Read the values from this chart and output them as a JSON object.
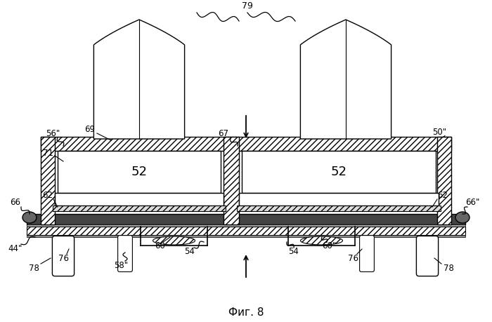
{
  "title": "Фиг. 8",
  "bg": "#ffffff",
  "lc": "#000000",
  "fig_width": 7.0,
  "fig_height": 4.59,
  "dpi": 100
}
